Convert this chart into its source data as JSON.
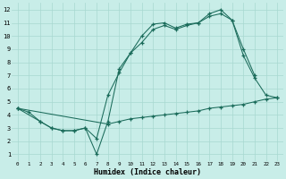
{
  "xlabel": "Humidex (Indice chaleur)",
  "bg_color": "#c8ede8",
  "grid_color": "#a8d8d0",
  "line_color": "#1a6b5a",
  "xlim": [
    -0.5,
    23.5
  ],
  "ylim": [
    0.5,
    12.5
  ],
  "xticks": [
    0,
    1,
    2,
    3,
    4,
    5,
    6,
    7,
    8,
    9,
    10,
    11,
    12,
    13,
    14,
    15,
    16,
    17,
    18,
    19,
    20,
    21,
    22,
    23
  ],
  "yticks": [
    1,
    2,
    3,
    4,
    5,
    6,
    7,
    8,
    9,
    10,
    11,
    12
  ],
  "series1_x": [
    0,
    1,
    2,
    3,
    4,
    5,
    6,
    7,
    8,
    9,
    10,
    11,
    12,
    13,
    14,
    15,
    16,
    17,
    18,
    19,
    20,
    21
  ],
  "series1_y": [
    4.5,
    4.2,
    3.5,
    3.0,
    2.8,
    2.8,
    3.0,
    1.0,
    3.5,
    7.5,
    8.7,
    10.0,
    10.9,
    11.0,
    10.6,
    10.9,
    11.0,
    11.7,
    12.0,
    11.2,
    9.0,
    7.0
  ],
  "series2_x": [
    0,
    2,
    3,
    4,
    5,
    6,
    7,
    8,
    9,
    10,
    11,
    12,
    13,
    14,
    15,
    16,
    17,
    18,
    19,
    20,
    21,
    22,
    23
  ],
  "series2_y": [
    4.5,
    3.5,
    3.0,
    2.8,
    2.8,
    3.0,
    2.2,
    5.5,
    7.2,
    8.7,
    9.5,
    10.5,
    10.8,
    10.5,
    10.8,
    11.0,
    11.5,
    11.7,
    11.2,
    8.5,
    6.8,
    5.5,
    5.3
  ],
  "series3_x": [
    0,
    8,
    9,
    10,
    11,
    12,
    13,
    14,
    15,
    16,
    17,
    18,
    19,
    20,
    21,
    22,
    23
  ],
  "series3_y": [
    4.5,
    3.3,
    3.5,
    3.7,
    3.8,
    3.9,
    4.0,
    4.1,
    4.2,
    4.3,
    4.5,
    4.6,
    4.7,
    4.8,
    5.0,
    5.2,
    5.3
  ]
}
